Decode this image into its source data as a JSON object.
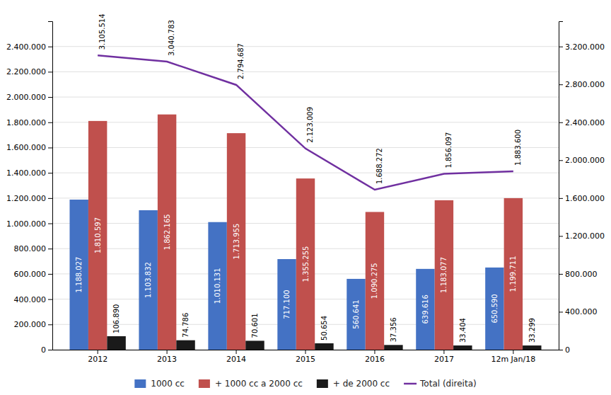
{
  "chart_data": {
    "type": "bar",
    "categories": [
      "2012",
      "2013",
      "2014",
      "2015",
      "2016",
      "2017",
      "12m Jan/18"
    ],
    "series": [
      {
        "name": "1000 cc",
        "color": "#4472c4",
        "values": [
          1188027,
          1103832,
          1010131,
          717100,
          560641,
          639616,
          650590
        ],
        "value_labels": [
          "1.188.027",
          "1.103.832",
          "1.010.131",
          "717.100",
          "560.641",
          "639.616",
          "650.590"
        ]
      },
      {
        "name": "+ 1000 cc a 2000 cc",
        "color": "#c0504d",
        "values": [
          1810597,
          1862165,
          1713955,
          1355255,
          1090275,
          1183077,
          1199711
        ],
        "value_labels": [
          "1.810.597",
          "1.862.165",
          "1.713.955",
          "1.355.255",
          "1.090.275",
          "1.183.077",
          "1.199.711"
        ]
      },
      {
        "name": "+ de 2000 cc",
        "color": "#1a1a1a",
        "values": [
          106890,
          74786,
          70601,
          50654,
          37356,
          33404,
          33299
        ],
        "value_labels": [
          "106.890",
          "74.786",
          "70.601",
          "50.654",
          "37.356",
          "33.404",
          "33.299"
        ]
      },
      {
        "name": "Total (direita)",
        "type": "line",
        "axis": "y2",
        "color": "#7030a0",
        "values": [
          3105514,
          3040783,
          2794687,
          2123009,
          1688272,
          1856097,
          1883600
        ],
        "value_labels": [
          "3.105.514",
          "3.040.783",
          "2.794.687",
          "2.123.009",
          "1.688.272",
          "1.856.097",
          "1.883.600"
        ]
      }
    ],
    "ylim": [
      0,
      2600000
    ],
    "yticks": [
      0,
      {
        "value": 200000,
        "label": "200.000"
      },
      {
        "value": 400000,
        "label": "400.000"
      },
      {
        "value": 600000,
        "label": "600.000"
      },
      {
        "value": 800000,
        "label": "800.000"
      },
      {
        "value": 1000000,
        "label": "1.000.000"
      },
      {
        "value": 1200000,
        "label": "1.200.000"
      },
      {
        "value": 1400000,
        "label": "1.400.000"
      },
      {
        "value": 1600000,
        "label": "1.600.000"
      },
      {
        "value": 1800000,
        "label": "1.800.000"
      },
      {
        "value": 2000000,
        "label": "2.000.000"
      },
      {
        "value": 2200000,
        "label": "2.200.000"
      },
      {
        "value": 2400000,
        "label": "2.400.000"
      }
    ],
    "y2lim": [
      0,
      3466667
    ],
    "y2ticks": [
      0,
      {
        "value": 400000,
        "label": "400.000"
      },
      {
        "value": 800000,
        "label": "800.000"
      },
      {
        "value": 1200000,
        "label": "1.200.000"
      },
      {
        "value": 1600000,
        "label": "1.600.000"
      },
      {
        "value": 2000000,
        "label": "2.000.000"
      },
      {
        "value": 2400000,
        "label": "2.400.000"
      },
      {
        "value": 2800000,
        "label": "2.800.000"
      },
      {
        "value": 3200000,
        "label": "3.200.000"
      }
    ],
    "grid": true,
    "legend": "bottom",
    "data_labels": true
  }
}
